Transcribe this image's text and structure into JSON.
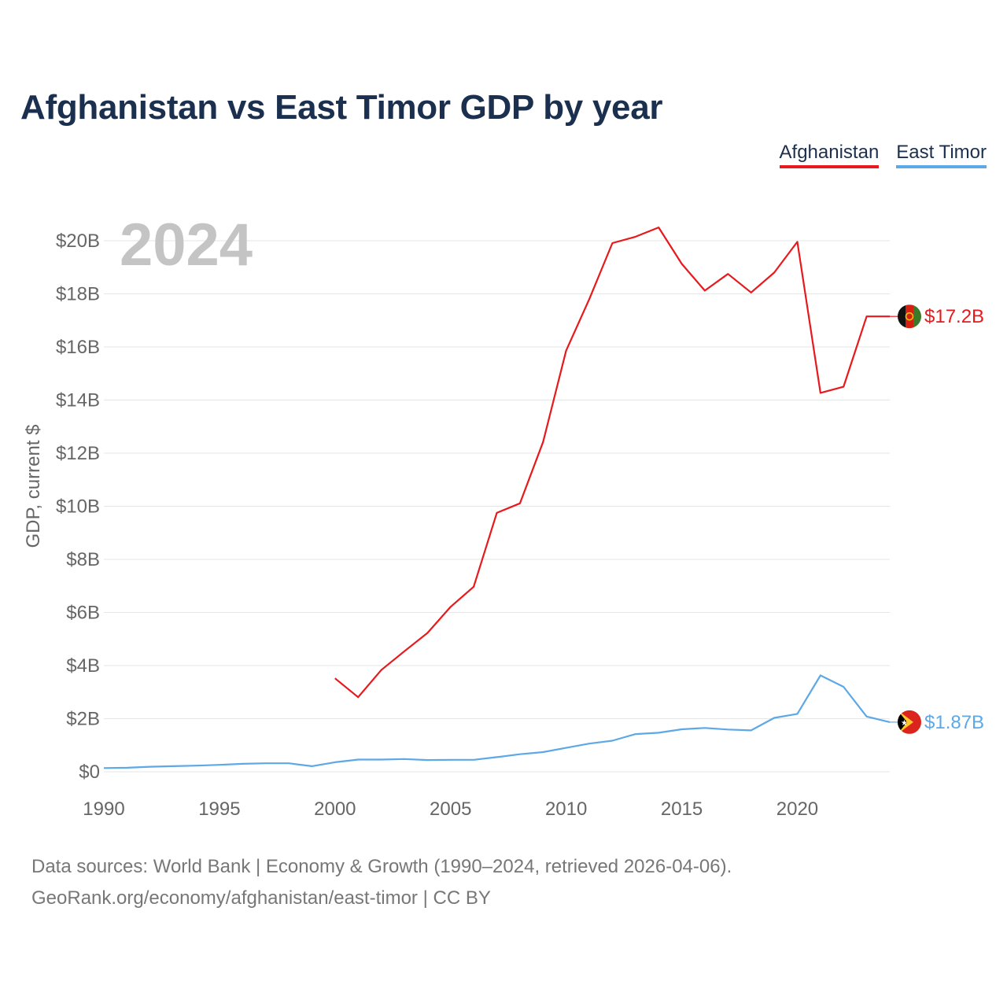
{
  "title": "Afghanistan vs East Timor GDP by year",
  "legend": {
    "afghanistan": "Afghanistan",
    "east_timor": "East Timor"
  },
  "current_year": "2024",
  "source": {
    "line1": "Data sources: World Bank | Economy & Growth (1990–2024, retrieved 2026-04-06).",
    "line2": "GeoRank.org/economy/afghanistan/east-timor | CC BY"
  },
  "colors": {
    "afghanistan": "#e8191c",
    "east_timor": "#5da8e6",
    "grid": "#e6e6e6",
    "axis_text": "#666666"
  },
  "chart_data": {
    "type": "line",
    "title": "Afghanistan vs East Timor GDP by year",
    "xlabel": "",
    "ylabel": "GDP, current $",
    "xlim": [
      1990,
      2024
    ],
    "ylim": [
      0,
      20
    ],
    "x_ticks": [
      1990,
      1995,
      2000,
      2005,
      2010,
      2015,
      2020
    ],
    "x_tick_labels": [
      "1990",
      "1995",
      "2000",
      "2005",
      "2010",
      "2015",
      "2020"
    ],
    "y_ticks": [
      0,
      2,
      4,
      6,
      8,
      10,
      12,
      14,
      16,
      18,
      20
    ],
    "y_tick_labels": [
      "$0",
      "$2B",
      "$4B",
      "$6B",
      "$8B",
      "$10B",
      "$12B",
      "$14B",
      "$16B",
      "$18B",
      "$20B"
    ],
    "units": "billions of current US$",
    "series": [
      {
        "name": "Afghanistan",
        "color": "#e8191c",
        "x": [
          2000,
          2001,
          2002,
          2003,
          2004,
          2005,
          2006,
          2007,
          2008,
          2009,
          2010,
          2011,
          2012,
          2013,
          2014,
          2015,
          2016,
          2017,
          2018,
          2019,
          2020,
          2021,
          2022,
          2023,
          2024
        ],
        "values": [
          3.52,
          2.81,
          3.83,
          4.54,
          5.23,
          6.21,
          6.97,
          9.75,
          10.11,
          12.42,
          15.86,
          17.8,
          19.91,
          20.15,
          20.5,
          19.13,
          18.12,
          18.75,
          18.05,
          18.8,
          19.96,
          14.27,
          14.5,
          17.15,
          17.15
        ],
        "end_label": "$17.2B"
      },
      {
        "name": "East Timor",
        "color": "#5da8e6",
        "x": [
          1990,
          1991,
          1992,
          1993,
          1994,
          1995,
          1996,
          1997,
          1998,
          1999,
          2000,
          2001,
          2002,
          2003,
          2004,
          2005,
          2006,
          2007,
          2008,
          2009,
          2010,
          2011,
          2012,
          2013,
          2014,
          2015,
          2016,
          2017,
          2018,
          2019,
          2020,
          2021,
          2022,
          2023,
          2024
        ],
        "values": [
          0.14,
          0.15,
          0.19,
          0.21,
          0.23,
          0.26,
          0.3,
          0.32,
          0.32,
          0.21,
          0.36,
          0.46,
          0.46,
          0.48,
          0.44,
          0.45,
          0.45,
          0.55,
          0.66,
          0.74,
          0.9,
          1.06,
          1.17,
          1.42,
          1.47,
          1.6,
          1.65,
          1.59,
          1.56,
          2.03,
          2.18,
          3.63,
          3.2,
          2.08,
          1.87
        ],
        "end_label": "$1.87B"
      }
    ]
  }
}
